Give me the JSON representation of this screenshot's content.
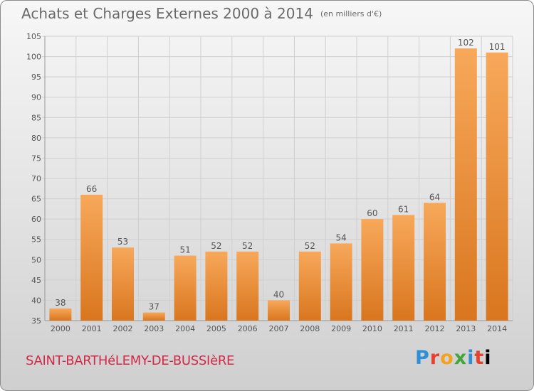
{
  "header": {
    "title": "Achats et Charges Externes 2000 à 2014",
    "unit": "(en milliers d'€)"
  },
  "footer": {
    "city": "SAINT-BARTHéLEMY-DE-BUSSIèRE",
    "logo_letters": [
      "P",
      "r",
      "o",
      "x",
      "i",
      "t",
      "i"
    ]
  },
  "colors": {
    "bar_light": "#f7a85a",
    "bar_dark": "#d9761f",
    "grid": "#cfcfcf",
    "text": "#555555"
  },
  "chart_data": {
    "type": "bar",
    "categories": [
      "2000",
      "2001",
      "2002",
      "2003",
      "2004",
      "2005",
      "2006",
      "2007",
      "2008",
      "2009",
      "2010",
      "2011",
      "2012",
      "2013",
      "2014"
    ],
    "values": [
      38,
      66,
      53,
      37,
      51,
      52,
      52,
      40,
      52,
      54,
      60,
      61,
      64,
      102,
      101
    ],
    "ylim": [
      35,
      105
    ],
    "yticks": [
      35,
      40,
      45,
      50,
      55,
      60,
      65,
      70,
      75,
      80,
      85,
      90,
      95,
      100,
      105
    ],
    "grid": true,
    "data_labels": true
  }
}
